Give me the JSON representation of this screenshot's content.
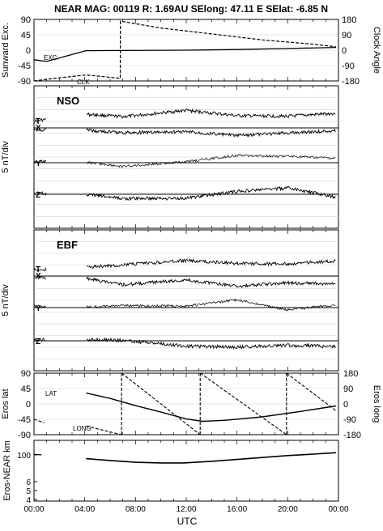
{
  "header": {
    "title": "NEAR MAG: 00119  R: 1.69AU  SElong:   47.11 E  SElat:   -6.85 N"
  },
  "x_axis": {
    "label": "UTC",
    "ticks": [
      "00:00",
      "04:00",
      "08:00",
      "12:00",
      "16:00",
      "20:00",
      "00:00"
    ],
    "range_hours": [
      0,
      24
    ]
  },
  "chart_data": [
    {
      "type": "line",
      "panel": "sunward-clock",
      "ylabel": "Sunward Exc.",
      "ylabel_right": "Clock Angle",
      "left_ticks": [
        "90",
        "45",
        "0",
        "-45",
        "-90"
      ],
      "right_ticks": [
        "180",
        "90",
        "0",
        "-90",
        "-180"
      ],
      "ylim": [
        -90,
        90
      ],
      "ylim_right": [
        -180,
        180
      ],
      "annotations": [
        "EXC.",
        "CLK"
      ],
      "series": [
        {
          "name": "EXC.",
          "x": [
            0.0,
            1.0,
            4.1,
            12,
            16,
            20,
            23.8
          ],
          "y": [
            -28,
            -33,
            -1.5,
            0,
            2,
            5,
            8
          ]
        },
        {
          "name": "CLK",
          "x": [
            0.0,
            1.0,
            4.1,
            5.5,
            6.8,
            6.81,
            10,
            14,
            18,
            22,
            23.8
          ],
          "y": [
            -180,
            -170,
            -145,
            -155,
            -165,
            170,
            130,
            95,
            60,
            35,
            20
          ]
        }
      ]
    },
    {
      "type": "line",
      "panel": "NSO",
      "title": "NSO",
      "ylabel": "5 nT/div",
      "components": [
        "T",
        "X",
        "Y",
        "Z"
      ],
      "trace_levels": {
        "T": [
          1.4,
          2.8,
          2.3,
          3.6,
          2.5,
          2.4,
          3.0
        ],
        "X": [
          -0.4,
          -0.5,
          -1.0,
          -0.8,
          -1.6,
          -1.0,
          -0.6
        ],
        "Y": [
          0.3,
          0.1,
          -0.8,
          0.2,
          1.5,
          1.3,
          0.9
        ],
        "Z": [
          0.2,
          0.0,
          -0.9,
          -0.8,
          0.6,
          1.3,
          -0.6
        ]
      },
      "trace_hours": [
        0,
        4.1,
        7,
        12,
        16,
        20,
        23.8
      ]
    },
    {
      "type": "line",
      "panel": "EBF",
      "title": "EBF",
      "ylabel": "5 nT/div",
      "components": [
        "T",
        "X",
        "Y",
        "Z"
      ],
      "trace_levels": {
        "T": [
          1.2,
          1.8,
          2.3,
          3.2,
          2.6,
          2.5,
          3.1
        ],
        "X": [
          -0.3,
          -0.5,
          -1.8,
          -0.8,
          -2.1,
          -1.4,
          -1.6
        ],
        "Y": [
          0.3,
          0.1,
          0.4,
          0.3,
          1.6,
          -0.5,
          0.6
        ],
        "Z": [
          0.2,
          0.3,
          0.1,
          -1.1,
          -1.3,
          -0.9,
          -1.2
        ]
      },
      "trace_hours": [
        0,
        4.1,
        7,
        12,
        16,
        20,
        23.8
      ]
    },
    {
      "type": "line",
      "panel": "eros-lat-long",
      "ylabel": "Eros lat",
      "ylabel_right": "Eros long",
      "left_ticks": [
        "90",
        "45",
        "0",
        "-45",
        "-90"
      ],
      "right_ticks": [
        "180",
        "90",
        "0",
        "-90",
        "-180"
      ],
      "ylim": [
        -90,
        90
      ],
      "annotations": [
        "LAT",
        "LONG"
      ],
      "series": [
        {
          "name": "LAT",
          "x": [
            0,
            4.1,
            6,
            8,
            10,
            12,
            13.3,
            15,
            18,
            21,
            23.8
          ],
          "y": [
            10,
            32,
            16,
            -5,
            -24,
            -44,
            -51,
            -48,
            -38,
            -22,
            -6
          ]
        },
        {
          "name": "LONG",
          "x": [
            0.0,
            0.8,
            4.1,
            6.9,
            6.91,
            13.1,
            13.11,
            19.9,
            19.91,
            23.8
          ],
          "y": [
            -90,
            -110,
            -130,
            -180,
            180,
            -180,
            180,
            -180,
            180,
            -40
          ]
        }
      ]
    },
    {
      "type": "line",
      "panel": "eros-near",
      "ylabel": "Eros-NEAR km",
      "left_ticks": [
        "100",
        "6",
        "5",
        "4"
      ],
      "scale": "log",
      "series": [
        {
          "name": "Eros-NEAR km",
          "x": [
            0.0,
            0.6,
            4.1,
            6,
            8,
            10,
            11.8,
            14,
            16,
            18,
            20,
            22,
            23.8
          ],
          "y": [
            80,
            78,
            60,
            53,
            47,
            45,
            45,
            50,
            57,
            65,
            74,
            82,
            90
          ]
        }
      ]
    }
  ]
}
